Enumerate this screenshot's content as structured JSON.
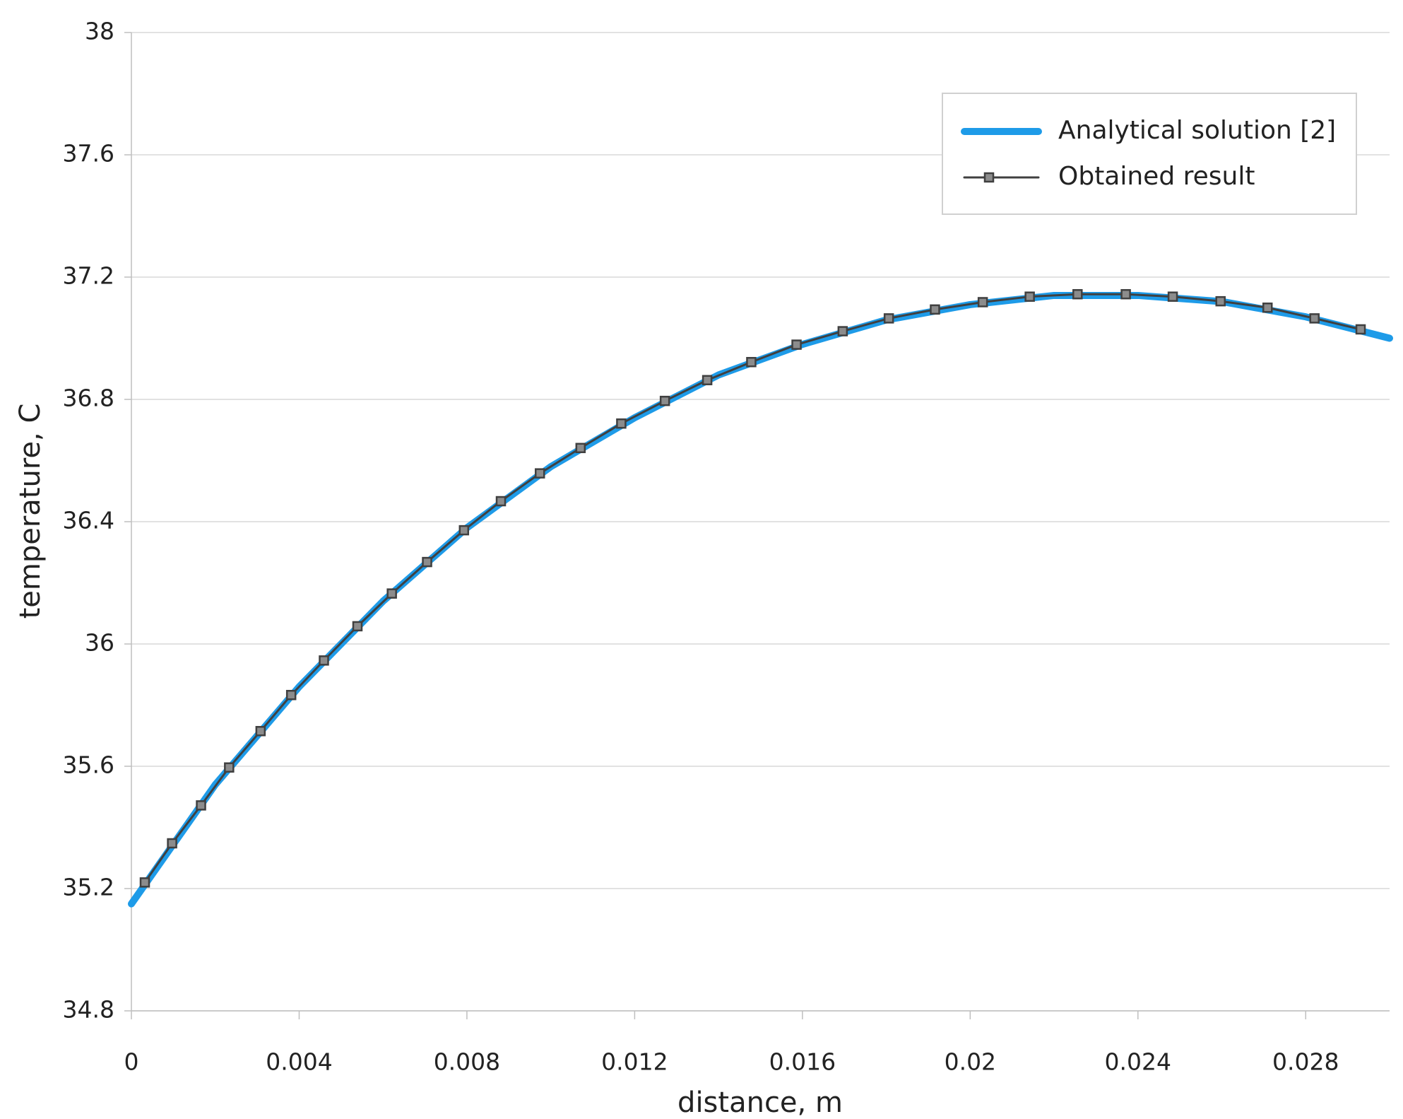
{
  "chart_data": {
    "type": "line",
    "xlabel": "distance, m",
    "ylabel": "temperature, C",
    "xlim": [
      0,
      0.03
    ],
    "ylim": [
      34.8,
      38
    ],
    "xticks": [
      0,
      0.004,
      0.008,
      0.012,
      0.016,
      0.02,
      0.024,
      0.028
    ],
    "yticks": [
      34.8,
      35.2,
      35.6,
      36,
      36.4,
      36.8,
      37.2,
      37.6,
      38
    ],
    "grid": true,
    "legend": "upper right",
    "series": [
      {
        "name": "Analytical solution [2]",
        "color": "#1e9be8",
        "marker": false,
        "x": [
          0,
          0.002,
          0.004,
          0.006,
          0.008,
          0.01,
          0.012,
          0.014,
          0.016,
          0.018,
          0.02,
          0.022,
          0.024,
          0.026,
          0.028,
          0.03
        ],
        "values": [
          35.15,
          35.54,
          35.86,
          36.14,
          36.38,
          36.58,
          36.74,
          36.88,
          36.98,
          37.06,
          37.11,
          37.14,
          37.14,
          37.12,
          37.07,
          37.0
        ]
      },
      {
        "name": "Obtained result",
        "color": "#404040",
        "marker": true,
        "x": [
          0.00032,
          0.00097,
          0.00166,
          0.00233,
          0.00308,
          0.00381,
          0.00459,
          0.00539,
          0.00621,
          0.00705,
          0.00793,
          0.00881,
          0.00974,
          0.01071,
          0.01168,
          0.01272,
          0.01373,
          0.01478,
          0.01586,
          0.01696,
          0.01806,
          0.01916,
          0.0203,
          0.02142,
          0.02256,
          0.02371,
          0.02483,
          0.02597,
          0.02709,
          0.02821,
          0.02931
        ],
        "values": [
          35.22,
          35.348,
          35.472,
          35.596,
          35.715,
          35.833,
          35.946,
          36.058,
          36.165,
          36.268,
          36.372,
          36.467,
          36.558,
          36.641,
          36.721,
          36.795,
          36.863,
          36.922,
          36.979,
          37.023,
          37.065,
          37.094,
          37.118,
          37.136,
          37.144,
          37.144,
          37.136,
          37.121,
          37.1,
          37.065,
          37.029
        ]
      }
    ]
  }
}
